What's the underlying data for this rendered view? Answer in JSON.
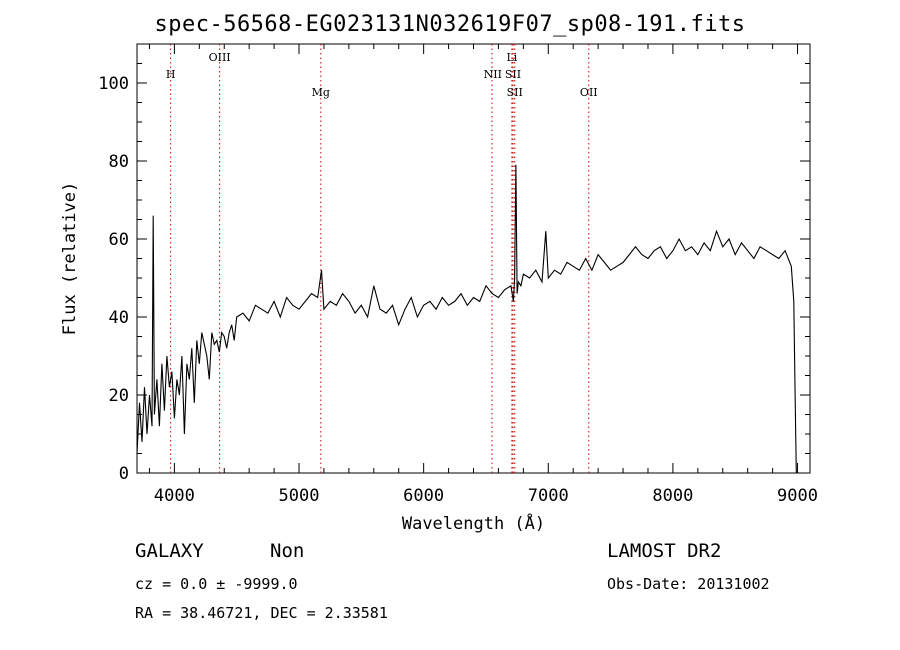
{
  "chart_data": {
    "type": "line",
    "title": "spec-56568-EG023131N032619F07_sp08-191.fits",
    "xlabel": "Wavelength (Å)",
    "ylabel": "Flux (relative)",
    "xlim": [
      3700,
      9100
    ],
    "ylim": [
      0,
      110
    ],
    "xticks": [
      4000,
      5000,
      6000,
      7000,
      8000,
      9000
    ],
    "yticks": [
      0,
      20,
      40,
      60,
      80,
      100
    ],
    "grid": false,
    "line_color": "#000000",
    "marker_color": "#c80000",
    "series": [
      {
        "x": [
          3700,
          3720,
          3740,
          3760,
          3780,
          3800,
          3820,
          3830,
          3840,
          3860,
          3880,
          3900,
          3920,
          3940,
          3960,
          3980,
          4000,
          4020,
          4040,
          4060,
          4080,
          4100,
          4120,
          4140,
          4160,
          4180,
          4200,
          4220,
          4240,
          4260,
          4280,
          4300,
          4320,
          4340,
          4360,
          4380,
          4400,
          4420,
          4440,
          4460,
          4480,
          4500,
          4550,
          4600,
          4650,
          4700,
          4750,
          4800,
          4850,
          4900,
          4950,
          5000,
          5050,
          5100,
          5150,
          5180,
          5200,
          5250,
          5300,
          5350,
          5400,
          5450,
          5500,
          5550,
          5600,
          5650,
          5700,
          5750,
          5800,
          5850,
          5900,
          5950,
          6000,
          6050,
          6100,
          6150,
          6200,
          6250,
          6300,
          6350,
          6400,
          6450,
          6500,
          6550,
          6600,
          6650,
          6700,
          6720,
          6730,
          6740,
          6750,
          6760,
          6780,
          6800,
          6850,
          6900,
          6950,
          6980,
          7000,
          7050,
          7100,
          7150,
          7200,
          7250,
          7300,
          7350,
          7400,
          7450,
          7500,
          7550,
          7600,
          7650,
          7700,
          7750,
          7800,
          7850,
          7900,
          7950,
          8000,
          8050,
          8100,
          8150,
          8200,
          8250,
          8300,
          8350,
          8400,
          8450,
          8500,
          8550,
          8600,
          8650,
          8700,
          8750,
          8800,
          8850,
          8900,
          8950,
          8970,
          8980,
          8990
        ],
        "y": [
          5,
          18,
          8,
          22,
          10,
          20,
          12,
          66,
          15,
          24,
          12,
          28,
          16,
          30,
          22,
          26,
          14,
          24,
          20,
          30,
          10,
          28,
          24,
          32,
          18,
          34,
          28,
          36,
          33,
          30,
          24,
          36,
          33,
          34,
          31,
          36,
          35,
          32,
          36,
          38,
          34,
          40,
          41,
          39,
          43,
          42,
          41,
          44,
          40,
          45,
          43,
          42,
          44,
          46,
          45,
          52,
          42,
          44,
          43,
          46,
          44,
          41,
          43,
          40,
          48,
          42,
          41,
          43,
          38,
          42,
          45,
          40,
          43,
          44,
          42,
          45,
          43,
          44,
          46,
          43,
          45,
          44,
          48,
          46,
          45,
          47,
          48,
          44,
          50,
          79,
          46,
          49,
          48,
          51,
          50,
          52,
          49,
          62,
          50,
          52,
          51,
          54,
          53,
          52,
          55,
          52,
          56,
          54,
          52,
          53,
          54,
          56,
          58,
          56,
          55,
          57,
          58,
          55,
          57,
          60,
          57,
          58,
          56,
          59,
          57,
          62,
          58,
          60,
          56,
          59,
          57,
          55,
          58,
          57,
          56,
          55,
          57,
          53,
          44,
          22,
          0
        ]
      }
    ],
    "lines": [
      {
        "name": "H",
        "wavelength": 3970
      },
      {
        "name": "OIII",
        "wavelength": 4363
      },
      {
        "name": "Mg",
        "wavelength": 5175
      },
      {
        "name": "NII",
        "wavelength": 6548
      },
      {
        "name": "Li",
        "wavelength": 6708
      },
      {
        "name": "SII",
        "wavelength": 6717
      },
      {
        "name": "SII",
        "wavelength": 6731
      },
      {
        "name": "OII",
        "wavelength": 7325
      }
    ]
  },
  "info": {
    "object_class": "GALAXY",
    "subclass": "Non",
    "survey": "LAMOST DR2",
    "cz": "cz = 0.0 ± -9999.0",
    "obs_date": "Obs-Date: 20131002",
    "coords": "RA =  38.46721, DEC =   2.33581"
  }
}
